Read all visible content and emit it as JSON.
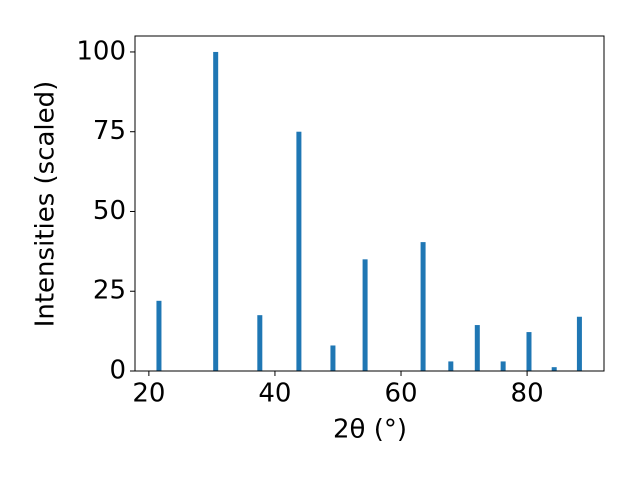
{
  "chart_data": {
    "type": "bar",
    "x_label": "2θ (°)",
    "y_label": "Intensities (scaled)",
    "x": [
      21.6,
      30.6,
      37.6,
      43.8,
      49.2,
      54.3,
      63.5,
      67.9,
      72.1,
      76.2,
      80.3,
      84.3,
      88.3
    ],
    "values": [
      22,
      100,
      17.5,
      75,
      8,
      35,
      40.4,
      3,
      14.4,
      3,
      12.2,
      1.2,
      17
    ],
    "color": "#1f77b4",
    "xlim": [
      17.8,
      92.2
    ],
    "xticks": [
      20,
      40,
      60,
      80
    ],
    "ylim": [
      0,
      105
    ],
    "yticks": [
      0,
      25,
      50,
      75,
      100
    ],
    "grid": false
  }
}
